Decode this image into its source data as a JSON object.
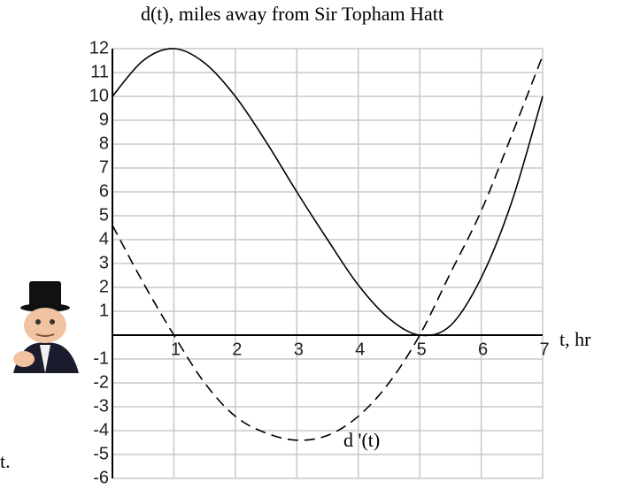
{
  "chart_data": {
    "type": "line",
    "title": "d(t), miles away from Sir Topham Hatt",
    "x_label": "t, hr",
    "annotations": [
      "d '(t)",
      "t."
    ],
    "x": [
      0,
      0.5,
      1,
      1.5,
      2,
      2.5,
      3,
      3.5,
      4,
      4.5,
      5,
      5.5,
      6,
      6.5,
      7
    ],
    "series": [
      {
        "color": "#000000",
        "dashed": false,
        "values": [
          10,
          11.5,
          12,
          11.4,
          10,
          8.1,
          6,
          4,
          2.1,
          0.7,
          0,
          0.4,
          2.4,
          5.6,
          10
        ]
      },
      {
        "color": "#000000",
        "dashed": true,
        "values": [
          4.6,
          2.2,
          0,
          -2,
          -3.4,
          -4.1,
          -4.4,
          -4.2,
          -3.4,
          -2,
          0,
          2.6,
          5.2,
          8.4,
          11.7
        ]
      }
    ],
    "xlim": [
      0,
      7
    ],
    "ylim": [
      -6,
      12
    ],
    "xticks": [
      1,
      2,
      3,
      4,
      5,
      6,
      7
    ],
    "yticks": [
      -6,
      -5,
      -4,
      -3,
      -2,
      -1,
      1,
      2,
      3,
      4,
      5,
      6,
      7,
      8,
      9,
      10,
      11,
      12
    ],
    "grid": true
  }
}
